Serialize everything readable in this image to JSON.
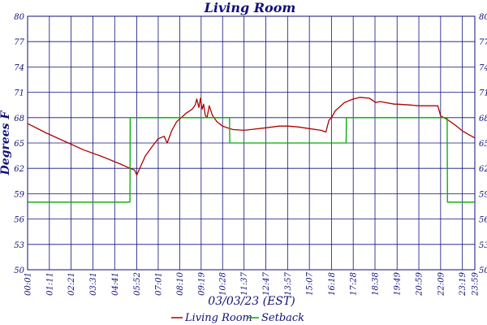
{
  "chart_data": {
    "type": "line",
    "title": "Living Room",
    "xlabel": "03/03/23 (EST)",
    "ylabel": "Degrees F",
    "ylim": [
      50,
      80
    ],
    "xlim": [
      "00:01",
      "23:59"
    ],
    "grid": true,
    "legend_position": "bottom-center",
    "x_tick_labels": [
      "00:01",
      "01:11",
      "02:21",
      "03:31",
      "04:41",
      "05:52",
      "07:01",
      "08:10",
      "09:19",
      "10:28",
      "11:37",
      "12:47",
      "13:57",
      "15:07",
      "16:18",
      "17:28",
      "18:38",
      "19:49",
      "20:59",
      "22:09",
      "23:19",
      "23:59"
    ],
    "y_tick_labels": [
      "50",
      "53",
      "56",
      "59",
      "62",
      "65",
      "68",
      "71",
      "74",
      "77",
      "80"
    ],
    "series": [
      {
        "name": "Living Room",
        "color": "#b00000",
        "x": [
          "00:01",
          "01:00",
          "02:00",
          "03:00",
          "04:00",
          "05:00",
          "05:30",
          "05:45",
          "05:52",
          "06:20",
          "06:50",
          "07:01",
          "07:20",
          "07:30",
          "07:45",
          "08:00",
          "08:30",
          "08:50",
          "09:00",
          "09:05",
          "09:12",
          "09:17",
          "09:22",
          "09:27",
          "09:32",
          "09:38",
          "09:45",
          "09:55",
          "10:10",
          "10:28",
          "11:00",
          "11:37",
          "12:00",
          "12:47",
          "13:30",
          "13:57",
          "14:30",
          "15:07",
          "15:45",
          "16:00",
          "16:10",
          "16:18",
          "16:30",
          "17:00",
          "17:28",
          "17:50",
          "18:20",
          "18:40",
          "18:55",
          "19:10",
          "19:40",
          "19:49",
          "20:30",
          "20:59",
          "21:30",
          "22:00",
          "22:09",
          "22:30",
          "23:00",
          "23:20",
          "23:59"
        ],
        "y": [
          67.3,
          66.2,
          65.2,
          64.2,
          63.4,
          62.5,
          62.0,
          61.8,
          61.2,
          63.5,
          65.0,
          65.5,
          65.8,
          65.0,
          66.5,
          67.5,
          68.5,
          69.0,
          69.5,
          70.2,
          69.2,
          70.3,
          69.0,
          69.6,
          68.3,
          68.0,
          69.4,
          68.3,
          67.5,
          67.0,
          66.6,
          66.5,
          66.6,
          66.8,
          67.0,
          67.0,
          66.9,
          66.7,
          66.5,
          66.3,
          67.7,
          68.0,
          68.8,
          69.8,
          70.2,
          70.4,
          70.3,
          69.8,
          69.9,
          69.8,
          69.6,
          69.6,
          69.5,
          69.4,
          69.4,
          69.4,
          68.2,
          67.8,
          67.0,
          66.4,
          65.6
        ]
      },
      {
        "name": "Setback",
        "color": "#00aa00",
        "x": [
          "00:01",
          "05:30",
          "05:31",
          "10:50",
          "10:51",
          "17:05",
          "17:06",
          "22:30",
          "22:31",
          "23:59"
        ],
        "y": [
          58.0,
          58.0,
          68.0,
          68.0,
          65.0,
          65.0,
          68.0,
          68.0,
          58.0,
          58.0
        ]
      }
    ]
  }
}
